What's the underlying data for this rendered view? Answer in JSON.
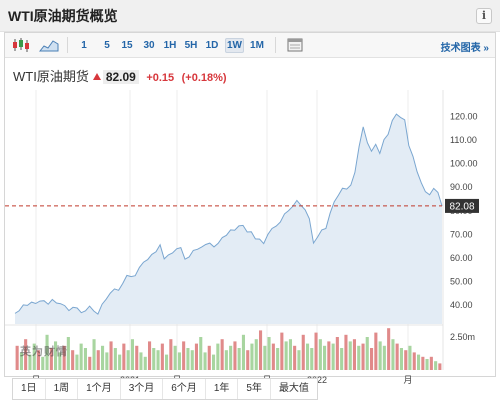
{
  "widget": {
    "title": "WTI原油期货概览",
    "info_label": "i"
  },
  "toolbar": {
    "icons": [
      "candlestick-icon",
      "mountain-chart-icon",
      "chart-settings-icon"
    ],
    "ranges": [
      "1",
      "5",
      "15",
      "30",
      "1H",
      "5H",
      "1D",
      "1W",
      "1M"
    ],
    "active_range": "1W",
    "tech_link": "技术图表 »"
  },
  "quote": {
    "name": "WTI原油期货",
    "price": "82.09",
    "change": "+0.15",
    "change_pct": "(+0.18%)",
    "direction_color": "#d7373c"
  },
  "chart_data": {
    "type": "area",
    "title": "",
    "xlabel": "",
    "ylabel": "",
    "x_tick_labels": [
      "月",
      "2021",
      "月",
      "月",
      "2022",
      "月"
    ],
    "y_ticks": [
      120,
      110,
      100,
      90,
      80,
      70,
      60,
      50,
      40
    ],
    "y_tick_labels": [
      "120.00",
      "110.00",
      "100.00",
      "90.00",
      "80.00",
      "70.00",
      "60.00",
      "50.00",
      "40.00"
    ],
    "ylim": [
      32,
      127
    ],
    "current_price_label": "82.08",
    "current_price": 82.08,
    "volume_label": "2.50m",
    "grid": "vertical",
    "colors": {
      "line": "#7aa6d0",
      "fill": "#e3ecf5",
      "volume_up": "#a8d5a0",
      "volume_down": "#e08a8a",
      "price_line": "#c0392b",
      "price_label_bg": "#333333"
    },
    "series": [
      {
        "values": [
          36.5,
          37.6,
          40.1,
          39.9,
          41.3,
          40.7,
          41.7,
          41.9,
          40.4,
          42.4,
          40.9,
          40.6,
          39.8,
          37.7,
          39.1,
          38.8,
          36.8,
          37.6,
          39.6,
          37.5,
          36.2,
          40.4,
          42.5,
          45.1,
          46.9,
          46.3,
          49.2,
          52.6,
          52.1,
          52.5,
          56.0,
          58.2,
          59.3,
          61.5,
          62.6,
          65.6,
          59.6,
          61.3,
          62.1,
          63.9,
          64.4,
          59.5,
          60.4,
          63.2,
          63.7,
          64.6,
          65.7,
          66.3,
          64.7,
          66.2,
          68.7,
          69.6,
          71.9,
          71.8,
          73.6,
          73.8,
          71.0,
          71.1,
          68.1,
          68.0,
          66.1,
          70.0,
          72.5,
          73.5,
          75.2,
          78.7,
          80.1,
          81.9,
          84.4,
          82.3,
          80.4,
          76.7,
          66.3,
          68.9,
          71.9,
          72.5,
          79.0,
          83.8,
          86.6,
          89.6,
          89.2,
          90.9,
          96.3,
          107.3,
          115.6,
          108.9,
          105.3,
          108.2,
          104.3,
          110.2,
          112.4,
          118.3,
          121.0,
          119.6,
          118.6,
          107.7,
          103.1,
          96.6,
          91.9,
          88.1,
          86.8,
          89.5,
          87.8,
          82.1
        ]
      }
    ],
    "volumes": [
      {
        "v": 0.55,
        "d": "down"
      },
      {
        "v": 0.4,
        "d": "up"
      },
      {
        "v": 0.7,
        "d": "down"
      },
      {
        "v": 0.35,
        "d": "up"
      },
      {
        "v": 0.6,
        "d": "up"
      },
      {
        "v": 0.45,
        "d": "down"
      },
      {
        "v": 0.3,
        "d": "up"
      },
      {
        "v": 0.8,
        "d": "up"
      },
      {
        "v": 0.5,
        "d": "down"
      },
      {
        "v": 0.65,
        "d": "up"
      },
      {
        "v": 0.4,
        "d": "up"
      },
      {
        "v": 0.55,
        "d": "down"
      },
      {
        "v": 0.75,
        "d": "up"
      },
      {
        "v": 0.45,
        "d": "down"
      },
      {
        "v": 0.35,
        "d": "up"
      },
      {
        "v": 0.6,
        "d": "up"
      },
      {
        "v": 0.5,
        "d": "up"
      },
      {
        "v": 0.3,
        "d": "down"
      },
      {
        "v": 0.7,
        "d": "up"
      },
      {
        "v": 0.45,
        "d": "down"
      },
      {
        "v": 0.55,
        "d": "up"
      },
      {
        "v": 0.4,
        "d": "up"
      },
      {
        "v": 0.65,
        "d": "down"
      },
      {
        "v": 0.5,
        "d": "up"
      },
      {
        "v": 0.35,
        "d": "up"
      },
      {
        "v": 0.6,
        "d": "down"
      },
      {
        "v": 0.45,
        "d": "up"
      },
      {
        "v": 0.7,
        "d": "up"
      },
      {
        "v": 0.55,
        "d": "down"
      },
      {
        "v": 0.4,
        "d": "up"
      },
      {
        "v": 0.3,
        "d": "up"
      },
      {
        "v": 0.65,
        "d": "down"
      },
      {
        "v": 0.5,
        "d": "up"
      },
      {
        "v": 0.45,
        "d": "up"
      },
      {
        "v": 0.6,
        "d": "down"
      },
      {
        "v": 0.35,
        "d": "up"
      },
      {
        "v": 0.7,
        "d": "down"
      },
      {
        "v": 0.55,
        "d": "up"
      },
      {
        "v": 0.4,
        "d": "up"
      },
      {
        "v": 0.65,
        "d": "down"
      },
      {
        "v": 0.5,
        "d": "up"
      },
      {
        "v": 0.45,
        "d": "up"
      },
      {
        "v": 0.6,
        "d": "down"
      },
      {
        "v": 0.75,
        "d": "up"
      },
      {
        "v": 0.4,
        "d": "up"
      },
      {
        "v": 0.55,
        "d": "down"
      },
      {
        "v": 0.35,
        "d": "up"
      },
      {
        "v": 0.6,
        "d": "up"
      },
      {
        "v": 0.7,
        "d": "down"
      },
      {
        "v": 0.45,
        "d": "up"
      },
      {
        "v": 0.55,
        "d": "up"
      },
      {
        "v": 0.65,
        "d": "down"
      },
      {
        "v": 0.5,
        "d": "up"
      },
      {
        "v": 0.8,
        "d": "up"
      },
      {
        "v": 0.45,
        "d": "down"
      },
      {
        "v": 0.6,
        "d": "up"
      },
      {
        "v": 0.7,
        "d": "up"
      },
      {
        "v": 0.9,
        "d": "down"
      },
      {
        "v": 0.55,
        "d": "up"
      },
      {
        "v": 0.75,
        "d": "up"
      },
      {
        "v": 0.6,
        "d": "down"
      },
      {
        "v": 0.5,
        "d": "up"
      },
      {
        "v": 0.85,
        "d": "down"
      },
      {
        "v": 0.65,
        "d": "up"
      },
      {
        "v": 0.7,
        "d": "up"
      },
      {
        "v": 0.55,
        "d": "down"
      },
      {
        "v": 0.45,
        "d": "up"
      },
      {
        "v": 0.8,
        "d": "down"
      },
      {
        "v": 0.6,
        "d": "up"
      },
      {
        "v": 0.5,
        "d": "up"
      },
      {
        "v": 0.85,
        "d": "down"
      },
      {
        "v": 0.7,
        "d": "up"
      },
      {
        "v": 0.55,
        "d": "up"
      },
      {
        "v": 0.65,
        "d": "down"
      },
      {
        "v": 0.6,
        "d": "up"
      },
      {
        "v": 0.75,
        "d": "down"
      },
      {
        "v": 0.5,
        "d": "up"
      },
      {
        "v": 0.8,
        "d": "down"
      },
      {
        "v": 0.65,
        "d": "up"
      },
      {
        "v": 0.7,
        "d": "down"
      },
      {
        "v": 0.55,
        "d": "up"
      },
      {
        "v": 0.6,
        "d": "down"
      },
      {
        "v": 0.75,
        "d": "up"
      },
      {
        "v": 0.5,
        "d": "down"
      },
      {
        "v": 0.85,
        "d": "down"
      },
      {
        "v": 0.65,
        "d": "up"
      },
      {
        "v": 0.55,
        "d": "up"
      },
      {
        "v": 0.95,
        "d": "down"
      },
      {
        "v": 0.7,
        "d": "up"
      },
      {
        "v": 0.6,
        "d": "down"
      },
      {
        "v": 0.5,
        "d": "up"
      },
      {
        "v": 0.45,
        "d": "down"
      },
      {
        "v": 0.55,
        "d": "up"
      },
      {
        "v": 0.4,
        "d": "down"
      },
      {
        "v": 0.35,
        "d": "up"
      },
      {
        "v": 0.3,
        "d": "down"
      },
      {
        "v": 0.25,
        "d": "up"
      },
      {
        "v": 0.3,
        "d": "down"
      },
      {
        "v": 0.2,
        "d": "up"
      },
      {
        "v": 0.15,
        "d": "down"
      }
    ]
  },
  "period_buttons": [
    "1日",
    "1周",
    "1个月",
    "3个月",
    "6个月",
    "1年",
    "5年",
    "最大值"
  ],
  "watermark": "英为财情"
}
